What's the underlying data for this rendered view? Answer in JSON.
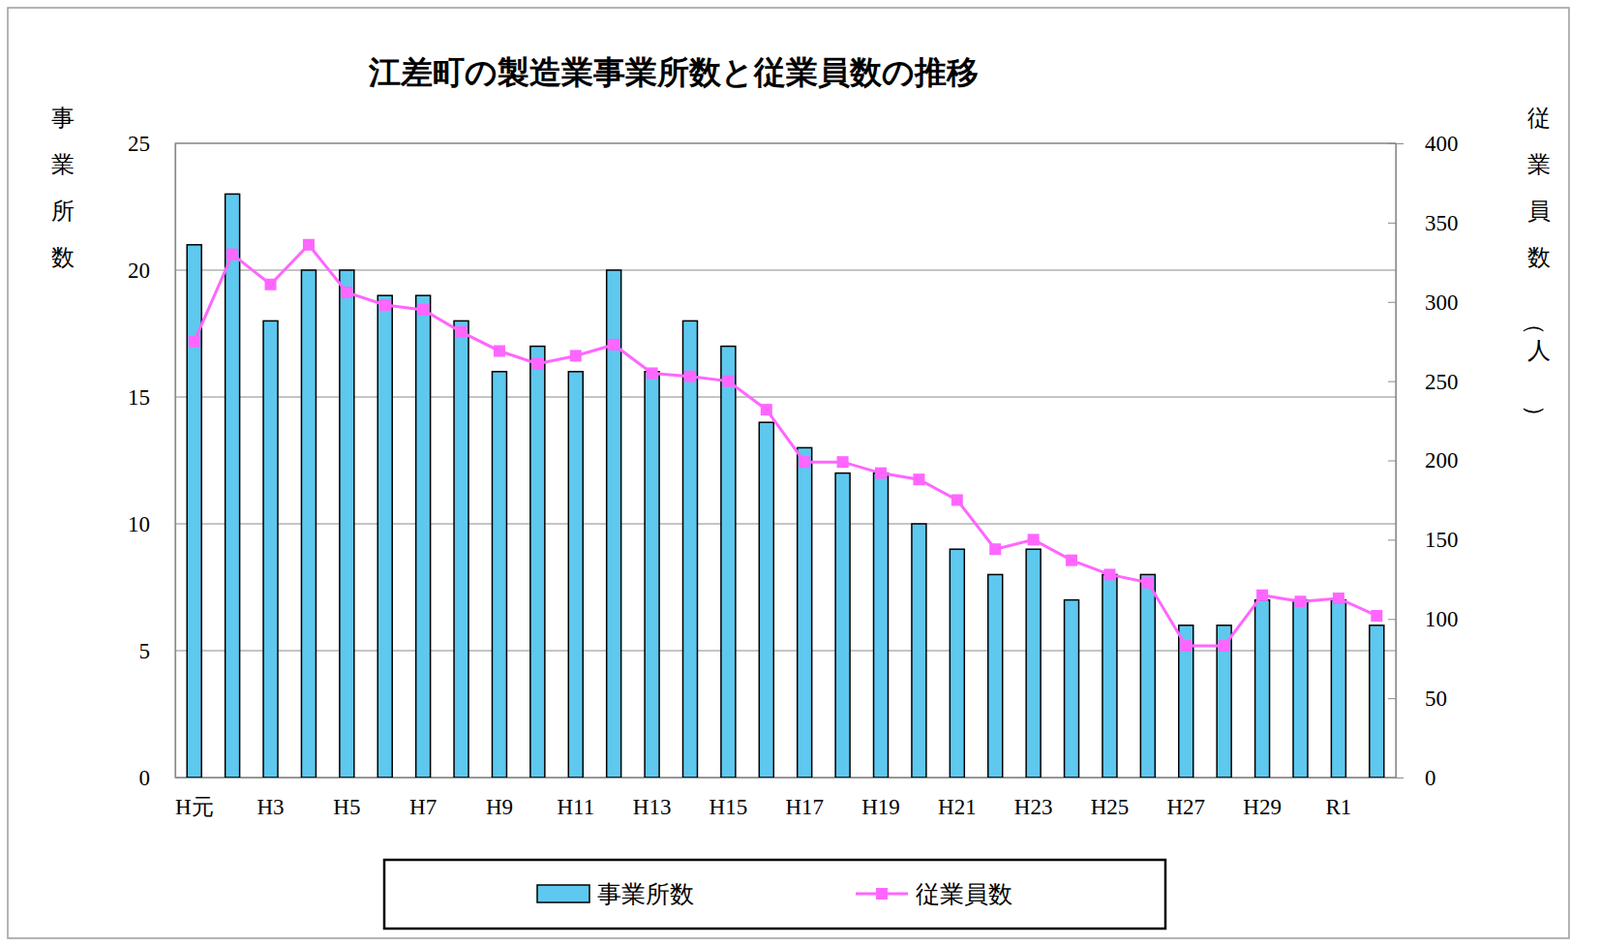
{
  "chart_data": {
    "type": "bar",
    "title": "江差町の製造業事業所数と従業員数の推移",
    "y_label": "事業所数",
    "y2_label": "従業員数（人）",
    "categories": [
      "H元",
      null,
      "H3",
      null,
      "H5",
      null,
      "H7",
      null,
      "H9",
      null,
      "H11",
      null,
      "H13",
      null,
      "H15",
      null,
      "H17",
      null,
      "H19",
      null,
      "H21",
      null,
      "H23",
      null,
      "H25",
      null,
      "H27",
      null,
      "H29",
      null,
      "R1",
      null
    ],
    "series": [
      {
        "name": "事業所数",
        "type": "bar",
        "color": "#5ec8ee",
        "values": [
          21,
          23,
          18,
          20,
          20,
          19,
          19,
          18,
          16,
          17,
          16,
          20,
          16,
          18,
          17,
          14,
          13,
          12,
          12,
          10,
          9,
          8,
          9,
          7,
          8,
          8,
          6,
          6,
          7,
          7,
          7,
          6
        ]
      },
      {
        "name": "従業員数",
        "type": "line",
        "axis": "y2",
        "color": "#ff66ff",
        "marker": "square",
        "values": [
          275,
          330,
          311,
          336,
          306,
          298,
          295,
          281,
          269,
          261,
          266,
          273,
          255,
          253,
          250,
          232,
          199,
          199,
          192,
          188,
          175,
          144,
          150,
          137,
          128,
          123,
          83,
          83,
          115,
          111,
          113,
          102
        ]
      }
    ],
    "ylim": [
      0,
      25
    ],
    "yticks": [
      0,
      5,
      10,
      15,
      20,
      25
    ],
    "y2lim": [
      0,
      400
    ],
    "y2ticks": [
      0,
      50,
      100,
      150,
      200,
      250,
      300,
      350,
      400
    ],
    "grid": true,
    "legend": "bottom"
  }
}
